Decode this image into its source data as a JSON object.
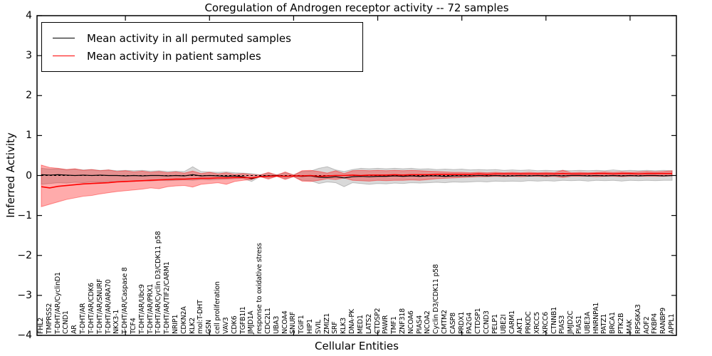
{
  "chart_data": {
    "type": "line",
    "title": "Coregulation of Androgen receptor activity -- 72 samples",
    "xlabel": "Cellular Entities",
    "ylabel": "Inferred Activity",
    "ylim": [
      -4,
      4
    ],
    "yticks": [
      4,
      3,
      2,
      1,
      0,
      -1,
      -2,
      -3,
      -4
    ],
    "xtick_positions": [
      10,
      20,
      30,
      40,
      50,
      60,
      70
    ],
    "grid": false,
    "zero_line": true,
    "legend_position": "upper left",
    "frame_color": "#000000",
    "categories": [
      "FHL2",
      "TMPRSS2",
      "T-DHT/AR/CyclinD1",
      "CCND1",
      "AR",
      "T-DHT/AR",
      "T-DHT/AR/CDK6",
      "T-DHT/AR/SNURF",
      "T-DHT/AR/ARA70",
      "NKX3-1",
      "T-DHT/AR/Caspase 8",
      "TCF4",
      "T-DHT/AR/Ubc9",
      "T-DHT/AR/PRX1",
      "T-DHT/AR/Cyclin D3/CDK11 p58",
      "T-DHT/AR/TIF2/CARM1",
      "NRIP1",
      "CDKN2A",
      "KLK2",
      "mol:T-DHT",
      "GSN",
      "cell proliferation",
      "VAV3",
      "CDK6",
      "TGFB1I1",
      "JMJD1A",
      "response to oxidative stress",
      "CDC2L1",
      "UBA3",
      "NCOA4",
      "SNURF",
      "TGIF1",
      "HIP1",
      "SVIL",
      "ZMIZ1",
      "SRF",
      "KLK3",
      "DNA-PK",
      "MED1",
      "LATS2",
      "CTDSP2",
      "PAWR",
      "TMF1",
      "ZNF318",
      "NCOA6",
      "PIAS4",
      "NCOA2",
      "Cyclin D3/CDK11 p58",
      "CMTM2",
      "CASP8",
      "PRDX1",
      "PA2G4",
      "CTDSP1",
      "CCND3",
      "PELP1",
      "UBE2I",
      "CARM1",
      "AKT1",
      "PRKDC",
      "XRCC5",
      "XRCC6",
      "CTNNB1",
      "PIAS3",
      "JMJD2C",
      "PIAS1",
      "UBE3A",
      "HNRNPA1",
      "PATZ1",
      "BRCA1",
      "PTK2B",
      "MAK",
      "RPS6KA3",
      "AOF2",
      "FKBP4",
      "RANBP9",
      "APPL1"
    ],
    "series": [
      {
        "name": "Mean activity in all permuted samples",
        "color": "#000000",
        "width": 1.2,
        "values": [
          0.02,
          0.01,
          0.02,
          0.01,
          0.0,
          0.01,
          0.0,
          0.01,
          0.0,
          0.0,
          -0.01,
          0.0,
          -0.01,
          0.0,
          0.0,
          -0.01,
          0.0,
          -0.01,
          0.02,
          -0.01,
          0.0,
          -0.01,
          -0.02,
          -0.01,
          -0.03,
          -0.08,
          -0.02,
          -0.01,
          0.0,
          -0.02,
          -0.01,
          -0.02,
          -0.01,
          -0.04,
          -0.05,
          -0.03,
          -0.06,
          -0.03,
          -0.02,
          -0.03,
          -0.02,
          -0.02,
          -0.01,
          -0.02,
          -0.01,
          -0.02,
          -0.01,
          -0.01,
          -0.02,
          -0.01,
          -0.01,
          -0.01,
          0.0,
          -0.01,
          0.0,
          -0.01,
          -0.01,
          0.0,
          -0.01,
          0.0,
          -0.01,
          0.0,
          -0.01,
          0.0,
          0.0,
          -0.01,
          0.0,
          -0.01,
          0.0,
          -0.01,
          0.0,
          -0.01,
          0.0,
          0.0,
          -0.01,
          0.0
        ]
      },
      {
        "name": "Mean activity in patient samples",
        "color": "#ff0000",
        "width": 1.6,
        "values": [
          -0.28,
          -0.31,
          -0.27,
          -0.25,
          -0.23,
          -0.21,
          -0.2,
          -0.19,
          -0.18,
          -0.16,
          -0.15,
          -0.14,
          -0.13,
          -0.12,
          -0.11,
          -0.1,
          -0.09,
          -0.09,
          -0.08,
          -0.07,
          -0.07,
          -0.06,
          -0.06,
          -0.05,
          -0.05,
          -0.06,
          -0.03,
          -0.02,
          -0.01,
          -0.02,
          -0.01,
          -0.01,
          0.0,
          -0.02,
          -0.01,
          0.0,
          0.0,
          0.01,
          0.0,
          0.01,
          0.01,
          0.01,
          0.02,
          0.01,
          0.02,
          0.02,
          0.02,
          0.03,
          0.03,
          0.03,
          0.03,
          0.03,
          0.04,
          0.03,
          0.04,
          0.04,
          0.04,
          0.04,
          0.04,
          0.04,
          0.04,
          0.04,
          0.05,
          0.04,
          0.04,
          0.04,
          0.05,
          0.05,
          0.04,
          0.05,
          0.05,
          0.04,
          0.05,
          0.05,
          0.05,
          0.05
        ]
      }
    ],
    "bands": [
      {
        "name": "permuted-samples-range",
        "color": "#00000026",
        "edge_color": "#00000033",
        "upper": [
          0.18,
          0.16,
          0.17,
          0.15,
          0.16,
          0.14,
          0.15,
          0.13,
          0.14,
          0.12,
          0.13,
          0.12,
          0.13,
          0.11,
          0.12,
          0.1,
          0.11,
          0.1,
          0.22,
          0.1,
          0.09,
          0.08,
          0.09,
          0.07,
          0.06,
          0.05,
          0.02,
          0.06,
          0.02,
          0.07,
          0.02,
          0.1,
          0.11,
          0.18,
          0.22,
          0.14,
          0.1,
          0.15,
          0.18,
          0.17,
          0.18,
          0.17,
          0.18,
          0.17,
          0.18,
          0.16,
          0.17,
          0.15,
          0.16,
          0.15,
          0.16,
          0.14,
          0.15,
          0.14,
          0.15,
          0.13,
          0.14,
          0.13,
          0.14,
          0.12,
          0.13,
          0.12,
          0.13,
          0.12,
          0.13,
          0.12,
          0.13,
          0.12,
          0.14,
          0.12,
          0.13,
          0.12,
          0.13,
          0.12,
          0.13,
          0.12
        ],
        "lower": [
          -0.22,
          -0.2,
          -0.18,
          -0.19,
          -0.17,
          -0.18,
          -0.16,
          -0.17,
          -0.15,
          -0.16,
          -0.14,
          -0.15,
          -0.13,
          -0.14,
          -0.12,
          -0.13,
          -0.12,
          -0.11,
          -0.12,
          -0.1,
          -0.11,
          -0.1,
          -0.09,
          -0.08,
          -0.07,
          -0.15,
          -0.03,
          -0.07,
          -0.02,
          -0.08,
          -0.03,
          -0.12,
          -0.13,
          -0.2,
          -0.16,
          -0.18,
          -0.28,
          -0.18,
          -0.2,
          -0.22,
          -0.2,
          -0.21,
          -0.19,
          -0.2,
          -0.18,
          -0.19,
          -0.18,
          -0.17,
          -0.18,
          -0.16,
          -0.17,
          -0.16,
          -0.15,
          -0.16,
          -0.14,
          -0.15,
          -0.14,
          -0.15,
          -0.13,
          -0.14,
          -0.13,
          -0.14,
          -0.12,
          -0.13,
          -0.12,
          -0.14,
          -0.12,
          -0.13,
          -0.12,
          -0.14,
          -0.12,
          -0.13,
          -0.12,
          -0.13,
          -0.12,
          -0.12
        ]
      },
      {
        "name": "patient-samples-range",
        "color": "#ff000054",
        "edge_color": "#ff000066",
        "upper": [
          0.26,
          0.2,
          0.18,
          0.15,
          0.17,
          0.13,
          0.15,
          0.12,
          0.14,
          0.1,
          0.12,
          0.09,
          0.11,
          0.08,
          0.1,
          0.07,
          0.09,
          0.06,
          0.11,
          0.05,
          0.08,
          0.04,
          0.07,
          0.03,
          0.05,
          0.02,
          0.01,
          0.08,
          0.01,
          0.09,
          0.01,
          0.12,
          0.13,
          0.1,
          0.06,
          0.12,
          0.05,
          0.12,
          0.13,
          0.12,
          0.13,
          0.12,
          0.13,
          0.12,
          0.13,
          0.12,
          0.11,
          0.1,
          0.09,
          0.08,
          0.08,
          0.07,
          0.08,
          0.07,
          0.08,
          0.07,
          0.08,
          0.07,
          0.08,
          0.07,
          0.08,
          0.07,
          0.13,
          0.07,
          0.08,
          0.07,
          0.08,
          0.09,
          0.08,
          0.09,
          0.08,
          0.09,
          0.1,
          0.09,
          0.1,
          0.12
        ],
        "lower": [
          -0.78,
          -0.72,
          -0.66,
          -0.6,
          -0.56,
          -0.52,
          -0.5,
          -0.46,
          -0.43,
          -0.4,
          -0.38,
          -0.36,
          -0.34,
          -0.31,
          -0.33,
          -0.28,
          -0.26,
          -0.25,
          -0.29,
          -0.22,
          -0.2,
          -0.18,
          -0.22,
          -0.15,
          -0.12,
          -0.1,
          -0.03,
          -0.09,
          -0.02,
          -0.1,
          -0.03,
          -0.14,
          -0.15,
          -0.12,
          -0.08,
          -0.1,
          -0.06,
          -0.12,
          -0.13,
          -0.14,
          -0.12,
          -0.13,
          -0.12,
          -0.12,
          -0.11,
          -0.12,
          -0.1,
          -0.08,
          -0.07,
          -0.06,
          -0.05,
          -0.04,
          -0.03,
          -0.03,
          -0.02,
          -0.03,
          -0.02,
          -0.03,
          -0.02,
          -0.02,
          -0.03,
          -0.02,
          -0.05,
          -0.02,
          -0.02,
          -0.02,
          -0.03,
          -0.02,
          -0.02,
          -0.03,
          -0.02,
          -0.02,
          -0.02,
          -0.02,
          -0.02,
          -0.01
        ]
      }
    ]
  }
}
